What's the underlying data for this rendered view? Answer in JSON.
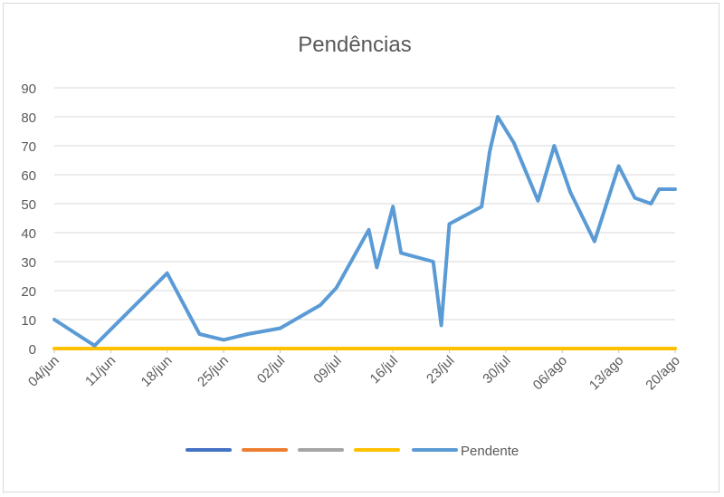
{
  "chart_data": {
    "type": "line",
    "title": "Pendências",
    "xlabel": "",
    "ylabel": "",
    "ylim": [
      0,
      90
    ],
    "yticks": [
      0,
      10,
      20,
      30,
      40,
      50,
      60,
      70,
      80,
      90
    ],
    "grid": true,
    "legend_position": "bottom",
    "x_ticks": [
      "04/jun",
      "11/jun",
      "18/jun",
      "25/jun",
      "02/jul",
      "09/jul",
      "16/jul",
      "23/jul",
      "30/jul",
      "06/ago",
      "13/ago",
      "20/ago"
    ],
    "series": [
      {
        "name": "",
        "color": "#4472c4",
        "x": [],
        "values": []
      },
      {
        "name": "",
        "color": "#ed7d31",
        "x": [],
        "values": []
      },
      {
        "name": "",
        "color": "#a5a5a5",
        "x": [],
        "values": []
      },
      {
        "name": "",
        "color": "#ffc000",
        "x": [
          "04/jun",
          "20/ago"
        ],
        "values": [
          0,
          0
        ]
      },
      {
        "name": "Pendente",
        "color": "#5b9bd5",
        "x": [
          "04/jun",
          "09/jun",
          "18/jun",
          "22/jun",
          "25/jun",
          "28/jun",
          "02/jul",
          "07/jul",
          "09/jul",
          "13/jul",
          "14/jul",
          "16/jul",
          "17/jul",
          "21/jul",
          "22/jul",
          "23/jul",
          "27/jul",
          "28/jul",
          "29/jul",
          "31/jul",
          "03/ago",
          "05/ago",
          "07/ago",
          "10/ago",
          "13/ago",
          "15/ago",
          "17/ago",
          "18/ago",
          "20/ago"
        ],
        "values": [
          10,
          1,
          26,
          5,
          3,
          5,
          7,
          15,
          21,
          41,
          28,
          49,
          33,
          30,
          8,
          43,
          49,
          68,
          80,
          71,
          51,
          70,
          54,
          37,
          63,
          52,
          50,
          55,
          55
        ]
      }
    ]
  }
}
